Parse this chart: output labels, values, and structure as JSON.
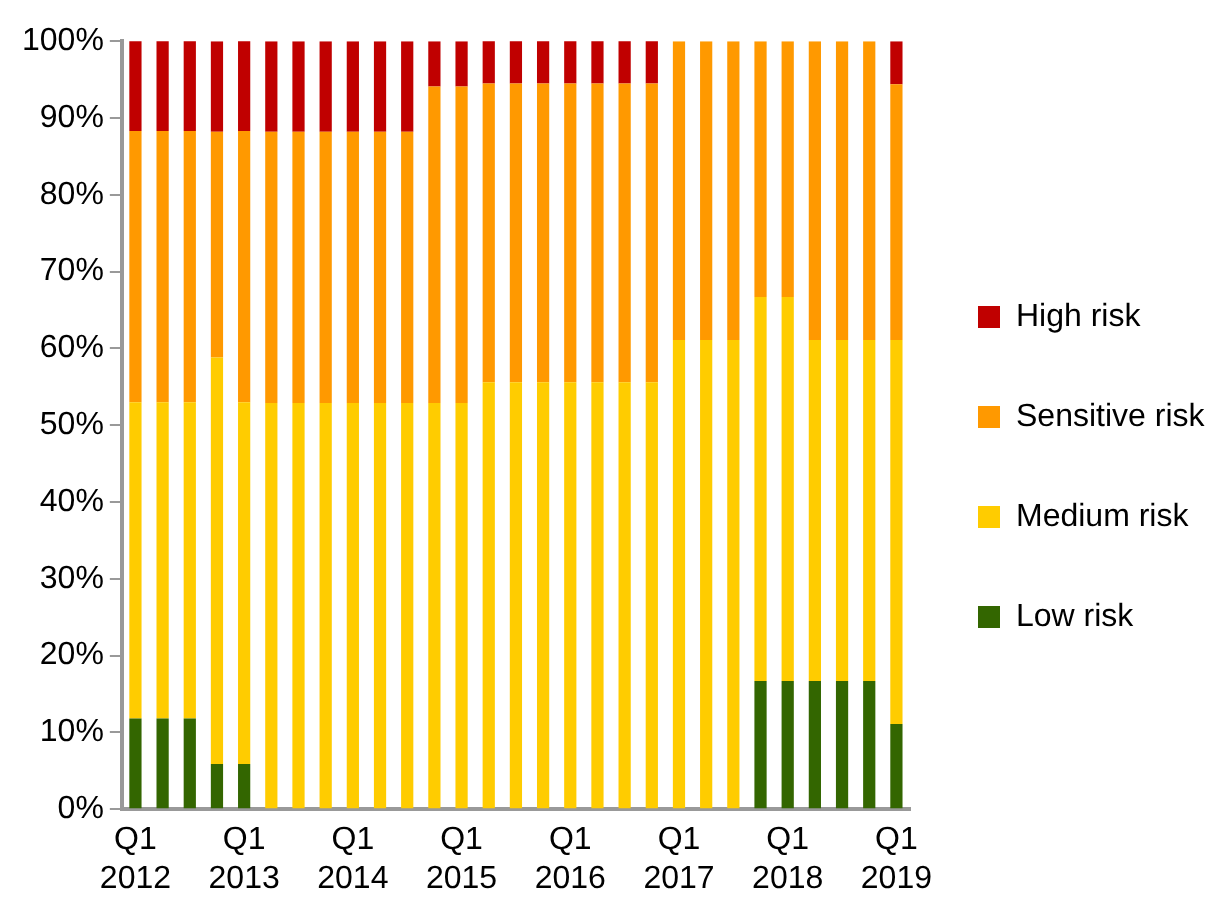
{
  "chart_data": {
    "type": "bar",
    "stacked": true,
    "legend": "right",
    "grid": false,
    "categories": [
      "Q1 2012",
      null,
      null,
      null,
      "Q1 2013",
      null,
      null,
      null,
      "Q1 2014",
      null,
      null,
      null,
      "Q1 2015",
      null,
      null,
      null,
      "Q1 2016",
      null,
      null,
      null,
      "Q1 2017",
      null,
      null,
      null,
      "Q1 2018",
      null,
      null,
      null,
      "Q1 2019"
    ],
    "ylim": [
      0,
      100
    ],
    "yticks": [
      {
        "value": 0,
        "label": "0%"
      },
      {
        "value": 10,
        "label": "10%"
      },
      {
        "value": 20,
        "label": "20%"
      },
      {
        "value": 30,
        "label": "30%"
      },
      {
        "value": 40,
        "label": "40%"
      },
      {
        "value": 50,
        "label": "50%"
      },
      {
        "value": 60,
        "label": "60%"
      },
      {
        "value": 70,
        "label": "70%"
      },
      {
        "value": 80,
        "label": "80%"
      },
      {
        "value": 90,
        "label": "90%"
      },
      {
        "value": 100,
        "label": "100%"
      }
    ],
    "series": [
      {
        "name": "Low risk",
        "color": "#336600",
        "values": [
          11.8,
          11.8,
          11.8,
          5.9,
          5.9,
          0,
          0,
          0,
          0,
          0,
          0,
          0,
          0,
          0,
          0,
          0,
          0,
          0,
          0,
          0,
          0,
          0,
          0,
          16.7,
          16.7,
          16.7,
          16.7,
          16.7,
          11.1
        ]
      },
      {
        "name": "Medium risk",
        "color": "#ffcc00",
        "values": [
          41.2,
          41.2,
          41.2,
          52.9,
          47.1,
          52.9,
          52.9,
          52.9,
          52.9,
          52.9,
          52.9,
          52.9,
          52.9,
          55.6,
          55.6,
          55.6,
          55.6,
          55.6,
          55.6,
          55.6,
          61.1,
          61.1,
          61.1,
          50,
          50,
          44.4,
          44.4,
          44.4,
          50
        ]
      },
      {
        "name": "Sensitive risk",
        "color": "#ff9900",
        "values": [
          35.3,
          35.3,
          35.3,
          29.4,
          35.3,
          35.3,
          35.3,
          35.3,
          35.3,
          35.3,
          35.3,
          41.2,
          41.2,
          38.9,
          38.9,
          38.9,
          38.9,
          38.9,
          38.9,
          38.9,
          38.9,
          38.9,
          38.9,
          33.3,
          33.3,
          38.9,
          38.9,
          38.9,
          33.3
        ]
      },
      {
        "name": "High risk",
        "color": "#c00000",
        "values": [
          11.8,
          11.8,
          11.8,
          11.8,
          11.8,
          11.8,
          11.8,
          11.8,
          11.8,
          11.8,
          11.8,
          5.9,
          5.9,
          5.6,
          5.6,
          5.6,
          5.6,
          5.6,
          5.6,
          5.6,
          0,
          0,
          0,
          0,
          0,
          0,
          0,
          0,
          5.6
        ]
      }
    ]
  }
}
